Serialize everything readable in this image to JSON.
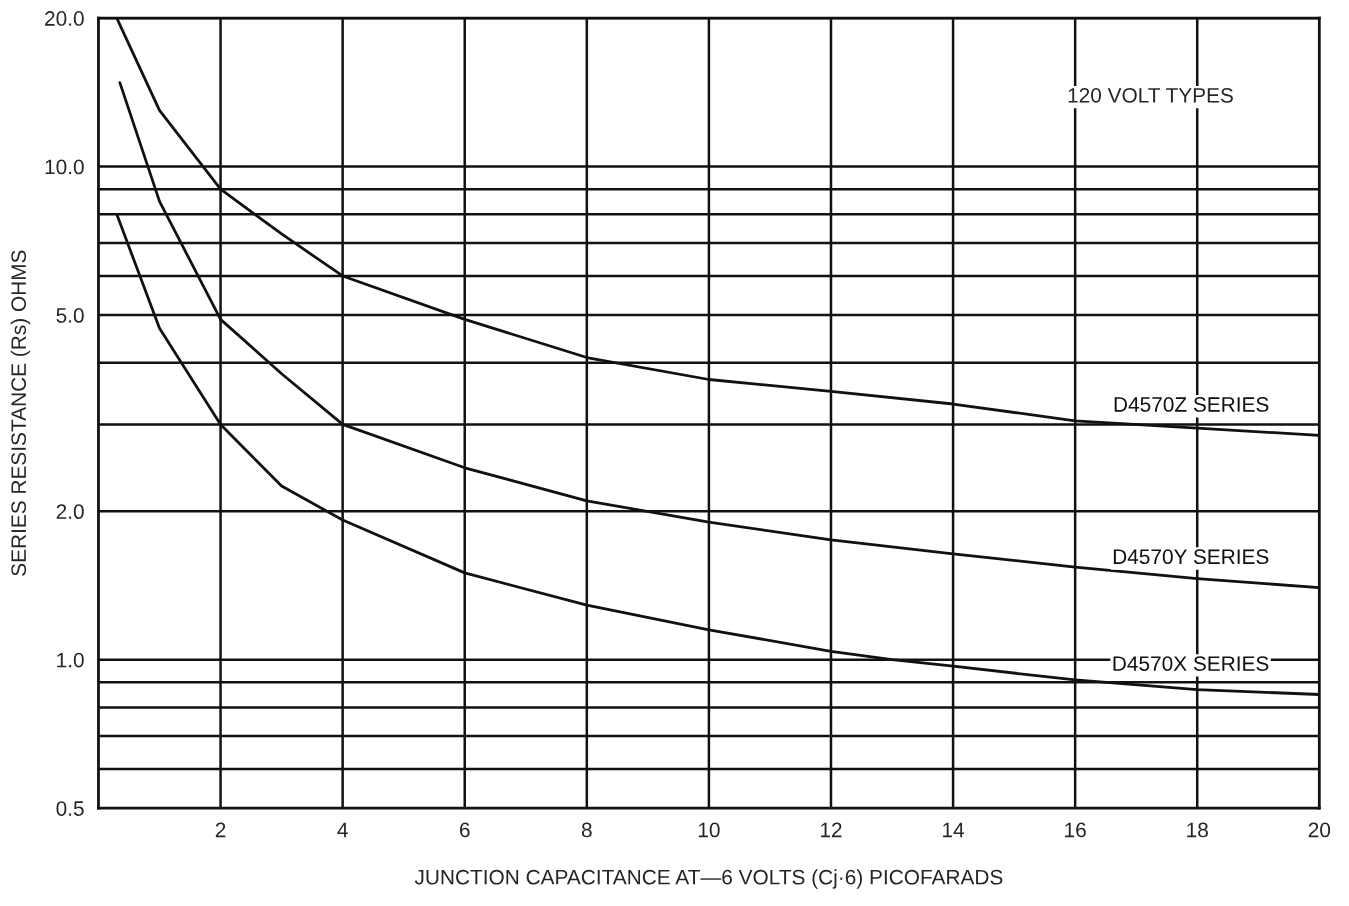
{
  "chart_data": {
    "type": "line",
    "xlabel": "JUNCTION CAPACITANCE AT—6 VOLTS (Cj·6) PICOFARADS",
    "ylabel": "SERIES RESISTANCE (Rs) OHMS",
    "annotations": [
      "120 VOLT TYPES"
    ],
    "log": "y",
    "xlim": [
      0,
      20
    ],
    "ylim": [
      0.5,
      20
    ],
    "xticks": [
      2,
      4,
      6,
      8,
      10,
      12,
      14,
      16,
      18,
      20
    ],
    "yticks": [
      0.5,
      {
        "value": 0.6,
        "label": null
      },
      {
        "value": 0.7,
        "label": null
      },
      {
        "value": 0.8,
        "label": null
      },
      {
        "value": 0.9,
        "label": null
      },
      {
        "value": 1.0,
        "label": "1.0"
      },
      {
        "value": 2.0,
        "label": "2.0"
      },
      {
        "value": 3,
        "label": null
      },
      {
        "value": 4,
        "label": null
      },
      {
        "value": 5.0,
        "label": "5.0"
      },
      {
        "value": 6,
        "label": null
      },
      {
        "value": 7,
        "label": null
      },
      {
        "value": 8,
        "label": null
      },
      {
        "value": 9,
        "label": null
      },
      {
        "value": 10.0,
        "label": "10.0"
      },
      {
        "value": 20.0,
        "label": "20.0"
      }
    ],
    "grid": true,
    "legend": false,
    "marker": "none",
    "line_style": "solid",
    "series": [
      {
        "name": "D4570Z SERIES",
        "color": "#111111",
        "x": [
          0.3,
          1,
          2,
          3,
          4,
          6,
          8,
          10,
          12,
          14,
          16,
          18,
          20
        ],
        "values": [
          20,
          13,
          9,
          7.3,
          6,
          4.9,
          4.1,
          3.7,
          3.5,
          3.3,
          3.05,
          2.95,
          2.85
        ]
      },
      {
        "name": "D4570Y SERIES",
        "color": "#111111",
        "x": [
          0.35,
          1,
          2,
          3,
          4,
          6,
          8,
          10,
          12,
          14,
          16,
          18,
          20
        ],
        "values": [
          14.8,
          8.5,
          4.9,
          3.8,
          3.0,
          2.45,
          2.1,
          1.9,
          1.75,
          1.64,
          1.54,
          1.46,
          1.4
        ]
      },
      {
        "name": "D4570X SERIES",
        "color": "#111111",
        "x": [
          0.3,
          1,
          2,
          3,
          4,
          6,
          8,
          10,
          12,
          13,
          14,
          16,
          18,
          20
        ],
        "values": [
          8,
          4.7,
          3.0,
          2.25,
          1.92,
          1.5,
          1.29,
          1.15,
          1.04,
          1.0,
          0.97,
          0.91,
          0.87,
          0.85
        ]
      }
    ]
  }
}
